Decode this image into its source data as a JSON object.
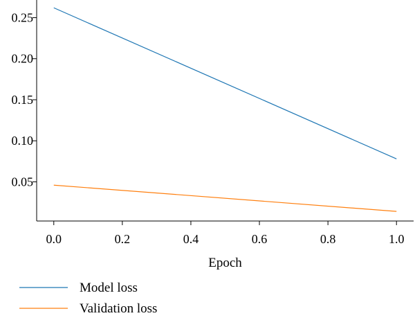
{
  "chart_data": {
    "type": "line",
    "title": "",
    "xlabel": "Epoch",
    "ylabel": "",
    "x": [
      0.0,
      1.0
    ],
    "xlim": [
      -0.05,
      1.05
    ],
    "ylim": [
      0.0023,
      0.2715
    ],
    "xticks": [
      0.0,
      0.2,
      0.4,
      0.6,
      0.8,
      1.0
    ],
    "xtick_labels": [
      "0.0",
      "0.2",
      "0.4",
      "0.6",
      "0.8",
      "1.0"
    ],
    "yticks": [
      0.05,
      0.1,
      0.15,
      0.2,
      0.25
    ],
    "ytick_labels": [
      "0.05",
      "0.10",
      "0.15",
      "0.20",
      "0.25"
    ],
    "grid": false,
    "legend_position": "bottom-left, below plot",
    "series": [
      {
        "name": "Model loss",
        "values": [
          0.262,
          0.078
        ],
        "color": "#1f77b4"
      },
      {
        "name": "Validation loss",
        "values": [
          0.046,
          0.014
        ],
        "color": "#ff7f0e"
      }
    ]
  }
}
